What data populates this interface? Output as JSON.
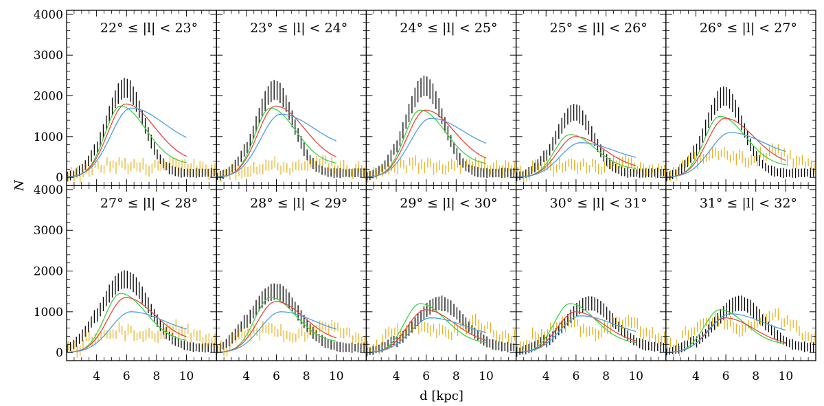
{
  "figure": {
    "xlabel": "d [kpc]",
    "ylabel": "N"
  },
  "colors": {
    "observed": "#000000",
    "residual": "#e6b422",
    "model_red": "#e8453c",
    "model_green": "#3fd13f",
    "model_blue": "#4a9fe0"
  },
  "chart_data": [
    {
      "type": "line",
      "title": "22° ≤ |l| < 23°",
      "xlim": [
        2,
        12
      ],
      "ylim": [
        -200,
        4100
      ],
      "xticks": [
        4,
        6,
        8,
        10
      ],
      "yticks": [
        0,
        1000,
        2000,
        3000,
        4000
      ],
      "model_peaks": {
        "red": 1800,
        "green": 1750,
        "blue": 1700
      },
      "observed_peak": 2150,
      "residual_level": 300
    },
    {
      "type": "line",
      "title": "23° ≤ |l| < 24°",
      "xlim": [
        2,
        12
      ],
      "ylim": [
        -200,
        4100
      ],
      "xticks": [
        4,
        6,
        8,
        10
      ],
      "yticks": [
        0,
        1000,
        2000,
        3000,
        4000
      ],
      "model_peaks": {
        "red": 1750,
        "green": 1700,
        "blue": 1550
      },
      "observed_peak": 2100,
      "residual_level": 280
    },
    {
      "type": "line",
      "title": "24° ≤ |l| < 25°",
      "xlim": [
        2,
        12
      ],
      "ylim": [
        -200,
        4100
      ],
      "xticks": [
        4,
        6,
        8,
        10
      ],
      "yticks": [
        0,
        1000,
        2000,
        3000,
        4000
      ],
      "model_peaks": {
        "red": 1650,
        "green": 1650,
        "blue": 1450
      },
      "observed_peak": 2200,
      "residual_level": 300
    },
    {
      "type": "line",
      "title": "25° ≤ |l| < 26°",
      "xlim": [
        2,
        12
      ],
      "ylim": [
        -200,
        4100
      ],
      "xticks": [
        4,
        6,
        8,
        10
      ],
      "yticks": [
        0,
        1000,
        2000,
        3000,
        4000
      ],
      "model_peaks": {
        "red": 1000,
        "green": 1050,
        "blue": 850
      },
      "observed_peak": 1550,
      "residual_level": 300
    },
    {
      "type": "line",
      "title": "26° ≤ |l| < 27°",
      "xlim": [
        2,
        12
      ],
      "ylim": [
        -200,
        4100
      ],
      "xticks": [
        4,
        6,
        8,
        10
      ],
      "yticks": [
        0,
        1000,
        2000,
        3000,
        4000
      ],
      "model_peaks": {
        "red": 1450,
        "green": 1500,
        "blue": 1100
      },
      "observed_peak": 1950,
      "residual_level": 550
    },
    {
      "type": "line",
      "title": "27° ≤ |l| < 28°",
      "xlim": [
        2,
        12
      ],
      "ylim": [
        -200,
        4100
      ],
      "xticks": [
        4,
        6,
        8,
        10
      ],
      "yticks": [
        0,
        1000,
        2000,
        3000,
        4000
      ],
      "model_peaks": {
        "red": 1350,
        "green": 1450,
        "blue": 1000
      },
      "observed_peak": 1750,
      "residual_level": 500
    },
    {
      "type": "line",
      "title": "28° ≤ |l| < 29°",
      "xlim": [
        2,
        12
      ],
      "ylim": [
        -200,
        4100
      ],
      "xticks": [
        4,
        6,
        8,
        10
      ],
      "yticks": [
        0,
        1000,
        2000,
        3000,
        4000
      ],
      "model_peaks": {
        "red": 1250,
        "green": 1350,
        "blue": 1000
      },
      "observed_peak": 1450,
      "residual_level": 550
    },
    {
      "type": "line",
      "title": "29° ≤ |l| < 30°",
      "xlim": [
        2,
        12
      ],
      "ylim": [
        -200,
        4100
      ],
      "xticks": [
        4,
        6,
        8,
        10
      ],
      "yticks": [
        0,
        1000,
        2000,
        3000,
        4000
      ],
      "model_peaks": {
        "red": 1050,
        "green": 1200,
        "blue": 850
      },
      "observed_peak": 1150,
      "residual_level": 600
    },
    {
      "type": "line",
      "title": "30° ≤ |l| < 31°",
      "xlim": [
        2,
        12
      ],
      "ylim": [
        -200,
        4100
      ],
      "xticks": [
        4,
        6,
        8,
        10
      ],
      "yticks": [
        0,
        1000,
        2000,
        3000,
        4000
      ],
      "model_peaks": {
        "red": 1000,
        "green": 1200,
        "blue": 900
      },
      "observed_peak": 1150,
      "residual_level": 650
    },
    {
      "type": "line",
      "title": "31° ≤ |l| < 32°",
      "xlim": [
        2,
        12
      ],
      "ylim": [
        -200,
        4100
      ],
      "xticks": [
        4,
        6,
        8,
        10
      ],
      "yticks": [
        0,
        1000,
        2000,
        3000,
        4000
      ],
      "model_peaks": {
        "red": 850,
        "green": 1050,
        "blue": 950
      },
      "observed_peak": 1150,
      "residual_level": 750
    }
  ]
}
